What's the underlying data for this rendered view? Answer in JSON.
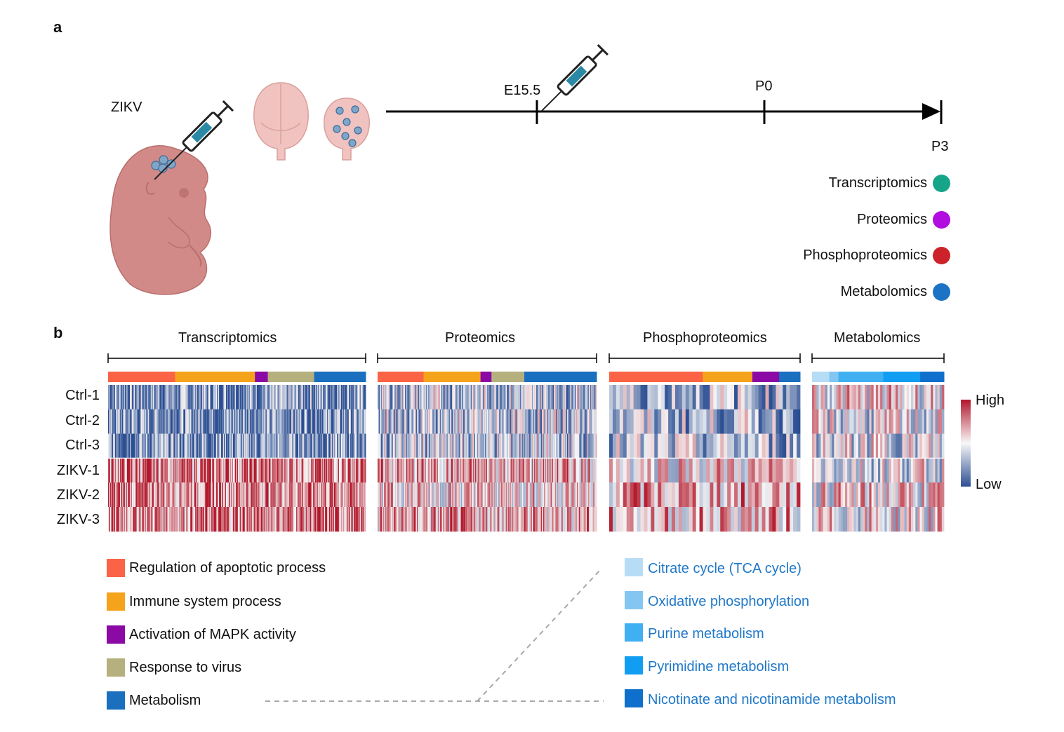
{
  "panel_a": {
    "letter": "a",
    "virus_label": "ZIKV",
    "timeline_points": [
      "E15.5",
      "P0",
      "P3"
    ],
    "omics": [
      {
        "label": "Transcriptomics",
        "color": "#17a589"
      },
      {
        "label": "Proteomics",
        "color": "#b10ce0"
      },
      {
        "label": "Phosphoproteomics",
        "color": "#cc2229"
      },
      {
        "label": "Metabolomics",
        "color": "#1c72c4"
      }
    ]
  },
  "panel_b": {
    "letter": "b",
    "blocks": [
      "Transcriptomics",
      "Proteomics",
      "Phosphoproteomics",
      "Metabolomics"
    ],
    "samples": [
      "Ctrl-1",
      "Ctrl-2",
      "Ctrl-3",
      "ZIKV-1",
      "ZIKV-2",
      "ZIKV-3"
    ],
    "scale": {
      "high": "High",
      "low": "Low",
      "high_color": "#b2182b",
      "mid_color": "#f7f7f7",
      "low_color": "#2c4f93"
    },
    "pathway_legend": [
      {
        "label": "Regulation of apoptotic process",
        "color": "#fb6346"
      },
      {
        "label": "Immune system process",
        "color": "#f5a31a"
      },
      {
        "label": "Activation of MAPK activity",
        "color": "#8b0aa5"
      },
      {
        "label": "Response to virus",
        "color": "#b5b07d"
      },
      {
        "label": "Metabolism",
        "color": "#1a6fbf"
      }
    ],
    "metabolism_legend": [
      {
        "label": "Citrate cycle (TCA cycle)",
        "color": "#b7dcf6"
      },
      {
        "label": "Oxidative phosphorylation",
        "color": "#84c6f2"
      },
      {
        "label": "Purine metabolism",
        "color": "#40b0f2"
      },
      {
        "label": "Pyrimidine metabolism",
        "color": "#119ef2"
      },
      {
        "label": "Nicotinate and nicotinamide metabolism",
        "color": "#0f6fcc"
      }
    ]
  }
}
